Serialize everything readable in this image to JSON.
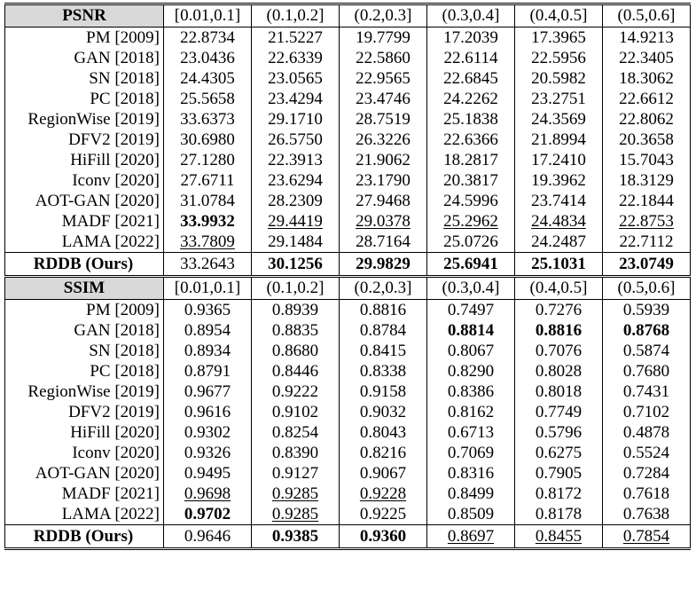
{
  "sections": [
    {
      "metric": "PSNR",
      "ranges": [
        "[0.01,0.1]",
        "(0.1,0.2]",
        "(0.2,0.3]",
        "(0.3,0.4]",
        "(0.4,0.5]",
        "(0.5,0.6]"
      ],
      "rows": [
        {
          "method": "PM [2009]",
          "values": [
            "22.8734",
            "21.5227",
            "19.7799",
            "17.2039",
            "17.3965",
            "14.9213"
          ]
        },
        {
          "method": "GAN [2018]",
          "values": [
            "23.0436",
            "22.6339",
            "22.5860",
            "22.6114",
            "22.5956",
            "22.3405"
          ]
        },
        {
          "method": "SN [2018]",
          "values": [
            "24.4305",
            "23.0565",
            "22.9565",
            "22.6845",
            "20.5982",
            "18.3062"
          ]
        },
        {
          "method": "PC [2018]",
          "values": [
            "25.5658",
            "23.4294",
            "23.4746",
            "24.2262",
            "23.2751",
            "22.6612"
          ]
        },
        {
          "method": "RegionWise [2019]",
          "values": [
            "33.6373",
            "29.1710",
            "28.7519",
            "25.1838",
            "24.3569",
            "22.8062"
          ]
        },
        {
          "method": "DFV2 [2019]",
          "values": [
            "30.6980",
            "26.5750",
            "26.3226",
            "22.6366",
            "21.8994",
            "20.3658"
          ]
        },
        {
          "method": "HiFill [2020]",
          "values": [
            "27.1280",
            "22.3913",
            "21.9062",
            "18.2817",
            "17.2410",
            "15.7043"
          ]
        },
        {
          "method": "Iconv [2020]",
          "values": [
            "27.6711",
            "23.6294",
            "23.1790",
            "20.3817",
            "19.3962",
            "18.3129"
          ]
        },
        {
          "method": "AOT-GAN [2020]",
          "values": [
            "31.0784",
            "28.2309",
            "27.9468",
            "24.5996",
            "23.7414",
            "22.1844"
          ]
        },
        {
          "method": "MADF [2021]",
          "values": [
            "33.9932",
            "29.4419",
            "29.0378",
            "25.2962",
            "24.4834",
            "22.8753"
          ],
          "bold": [
            0
          ],
          "underline": [
            1,
            2,
            3,
            4,
            5
          ]
        },
        {
          "method": "LAMA  [2022]",
          "values": [
            "33.7809",
            "29.1484",
            "28.7164",
            "25.0726",
            "24.2487",
            "22.7112"
          ],
          "underline": [
            0
          ]
        }
      ],
      "ours": {
        "method": "RDDB (Ours)",
        "values": [
          "33.2643",
          "30.1256",
          "29.9829",
          "25.6941",
          "25.1031",
          "23.0749"
        ],
        "bold": [
          1,
          2,
          3,
          4,
          5
        ]
      }
    },
    {
      "metric": "SSIM",
      "ranges": [
        "[0.01,0.1]",
        "(0.1,0.2]",
        "(0.2,0.3]",
        "(0.3,0.4]",
        "(0.4,0.5]",
        "(0.5,0.6]"
      ],
      "rows": [
        {
          "method": "PM [2009]",
          "values": [
            "0.9365",
            "0.8939",
            "0.8816",
            "0.7497",
            "0.7276",
            "0.5939"
          ]
        },
        {
          "method": "GAN [2018]",
          "values": [
            "0.8954",
            "0.8835",
            "0.8784",
            "0.8814",
            "0.8816",
            "0.8768"
          ],
          "bold": [
            3,
            4,
            5
          ]
        },
        {
          "method": "SN [2018]",
          "values": [
            "0.8934",
            "0.8680",
            "0.8415",
            "0.8067",
            "0.7076",
            "0.5874"
          ]
        },
        {
          "method": "PC [2018]",
          "values": [
            "0.8791",
            "0.8446",
            "0.8338",
            "0.8290",
            "0.8028",
            "0.7680"
          ]
        },
        {
          "method": "RegionWise [2019]",
          "values": [
            "0.9677",
            "0.9222",
            "0.9158",
            "0.8386",
            "0.8018",
            "0.7431"
          ]
        },
        {
          "method": "DFV2 [2019]",
          "values": [
            "0.9616",
            "0.9102",
            "0.9032",
            "0.8162",
            "0.7749",
            "0.7102"
          ]
        },
        {
          "method": "HiFill [2020]",
          "values": [
            "0.9302",
            "0.8254",
            "0.8043",
            "0.6713",
            "0.5796",
            "0.4878"
          ]
        },
        {
          "method": "Iconv [2020]",
          "values": [
            "0.9326",
            "0.8390",
            "0.8216",
            "0.7069",
            "0.6275",
            "0.5524"
          ]
        },
        {
          "method": "AOT-GAN [2020]",
          "values": [
            "0.9495",
            "0.9127",
            "0.9067",
            "0.8316",
            "0.7905",
            "0.7284"
          ]
        },
        {
          "method": "MADF [2021]",
          "values": [
            "0.9698",
            "0.9285",
            "0.9228",
            "0.8499",
            "0.8172",
            "0.7618"
          ],
          "underline": [
            0,
            1,
            2
          ]
        },
        {
          "method": "LAMA  [2022]",
          "values": [
            "0.9702",
            "0.9285",
            "0.9225",
            "0.8509",
            "0.8178",
            "0.7638"
          ],
          "bold": [
            0
          ],
          "underline": [
            1
          ]
        }
      ],
      "ours": {
        "method": "RDDB (Ours)",
        "values": [
          "0.9646",
          "0.9385",
          "0.9360",
          "0.8697",
          "0.8455",
          "0.7854"
        ],
        "bold": [
          1,
          2
        ],
        "underline": [
          3,
          4,
          5
        ]
      }
    }
  ]
}
